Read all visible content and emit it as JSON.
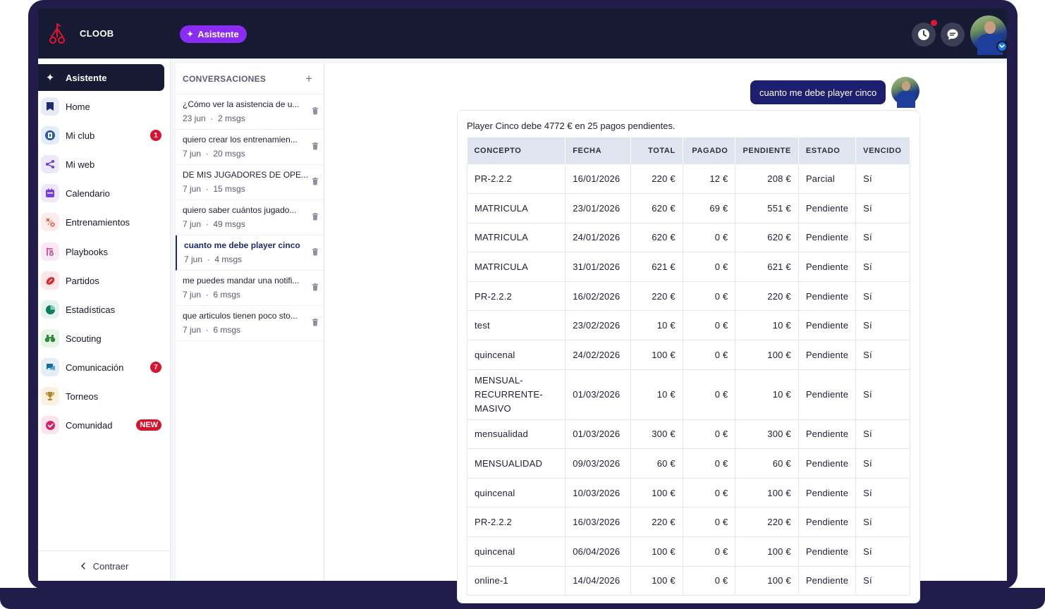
{
  "app": {
    "brand": "CLOOB",
    "assistant_pill": "Asistente"
  },
  "colors": {
    "topbar": "#161a33",
    "accent": "#8b2cf5",
    "badge": "#d8132e",
    "user_bubble": "#1c1f6e"
  },
  "sidebar": {
    "items": [
      {
        "label": "Asistente",
        "icon": "sparkle-icon",
        "active": true
      },
      {
        "label": "Home",
        "icon": "bookmark-icon"
      },
      {
        "label": "Mi club",
        "icon": "jersey-icon",
        "badge": "1"
      },
      {
        "label": "Mi web",
        "icon": "share-icon"
      },
      {
        "label": "Calendario",
        "icon": "calendar-icon"
      },
      {
        "label": "Entrenamientos",
        "icon": "tactics-icon"
      },
      {
        "label": "Playbooks",
        "icon": "playbook-icon"
      },
      {
        "label": "Partidos",
        "icon": "ball-icon"
      },
      {
        "label": "Estadísticas",
        "icon": "pie-chart-icon"
      },
      {
        "label": "Scouting",
        "icon": "binoculars-icon"
      },
      {
        "label": "Comunicación",
        "icon": "chat-icon",
        "badge": "7"
      },
      {
        "label": "Torneos",
        "icon": "trophy-icon"
      },
      {
        "label": "Comunidad",
        "icon": "community-icon",
        "badge": "NEW"
      }
    ],
    "collapse_label": "Contraer"
  },
  "conversations": {
    "title": "CONVERSACIONES",
    "items": [
      {
        "q": "¿Cómo ver la asistencia de u...",
        "date": "23 jun",
        "msgs": "2 msgs"
      },
      {
        "q": "quiero crear los entrenamien...",
        "date": "7 jun",
        "msgs": "20 msgs"
      },
      {
        "q": "DE MIS JUGADORES DE OPE...",
        "date": "7 jun",
        "msgs": "15 msgs"
      },
      {
        "q": "quiero saber cuántos jugado...",
        "date": "7 jun",
        "msgs": "49 msgs"
      },
      {
        "q": "cuanto me debe player cinco",
        "date": "7 jun",
        "msgs": "4 msgs",
        "selected": true
      },
      {
        "q": "me puedes mandar una notifi...",
        "date": "7 jun",
        "msgs": "6 msgs"
      },
      {
        "q": "que articulos tienen poco sto...",
        "date": "7 jun",
        "msgs": "6 msgs"
      }
    ]
  },
  "chat": {
    "user_message": "cuanto me debe player cinco",
    "answer_text": "Player Cinco debe 4772 € en 25 pagos pendientes.",
    "table": {
      "headers": [
        "CONCEPTO",
        "FECHA",
        "TOTAL",
        "PAGADO",
        "PENDIENTE",
        "ESTADO",
        "VENCIDO"
      ],
      "rows": [
        [
          "PR-2.2.2",
          "16/01/2026",
          "220 €",
          "12 €",
          "208 €",
          "Parcial",
          "Sí"
        ],
        [
          "MATRICULA",
          "23/01/2026",
          "620 €",
          "69 €",
          "551 €",
          "Pendiente",
          "Sí"
        ],
        [
          "MATRICULA",
          "24/01/2026",
          "620 €",
          "0 €",
          "620 €",
          "Pendiente",
          "Sí"
        ],
        [
          "MATRICULA",
          "31/01/2026",
          "621 €",
          "0 €",
          "621 €",
          "Pendiente",
          "Sí"
        ],
        [
          "PR-2.2.2",
          "16/02/2026",
          "220 €",
          "0 €",
          "220 €",
          "Pendiente",
          "Sí"
        ],
        [
          "test",
          "23/02/2026",
          "10 €",
          "0 €",
          "10 €",
          "Pendiente",
          "Sí"
        ],
        [
          "quincenal",
          "24/02/2026",
          "100 €",
          "0 €",
          "100 €",
          "Pendiente",
          "Sí"
        ],
        [
          "MENSUAL-RECURRENTE-MASIVO",
          "01/03/2026",
          "10 €",
          "0 €",
          "10 €",
          "Pendiente",
          "Sí"
        ],
        [
          "mensualidad",
          "01/03/2026",
          "300 €",
          "0 €",
          "300 €",
          "Pendiente",
          "Sí"
        ],
        [
          "MENSUALIDAD",
          "09/03/2026",
          "60 €",
          "0 €",
          "60 €",
          "Pendiente",
          "Sí"
        ],
        [
          "quincenal",
          "10/03/2026",
          "100 €",
          "0 €",
          "100 €",
          "Pendiente",
          "Sí"
        ],
        [
          "PR-2.2.2",
          "16/03/2026",
          "220 €",
          "0 €",
          "220 €",
          "Pendiente",
          "Sí"
        ],
        [
          "quincenal",
          "06/04/2026",
          "100 €",
          "0 €",
          "100 €",
          "Pendiente",
          "Sí"
        ],
        [
          "online-1",
          "14/04/2026",
          "100 €",
          "0 €",
          "100 €",
          "Pendiente",
          "Sí"
        ]
      ]
    }
  }
}
